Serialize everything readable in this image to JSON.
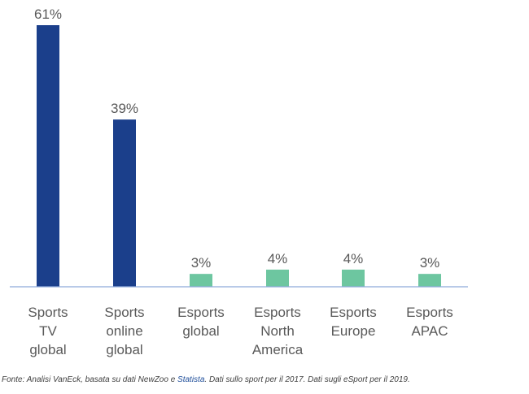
{
  "chart_data": {
    "type": "bar",
    "categories": [
      [
        "Sports",
        "TV",
        "global"
      ],
      [
        "Sports",
        "online",
        "global"
      ],
      [
        "Esports",
        "global"
      ],
      [
        "Esports",
        "North",
        "America"
      ],
      [
        "Esports",
        "Europe"
      ],
      [
        "Esports",
        "APAC"
      ]
    ],
    "values": [
      61,
      39,
      3,
      4,
      4,
      3
    ],
    "value_labels": [
      "61%",
      "39%",
      "3%",
      "4%",
      "4%",
      "3%"
    ],
    "ylim": [
      0,
      65
    ],
    "grid": false,
    "legend": "none",
    "colors": {
      "sports": "#1b3f8b",
      "esports": "#6dc6a0",
      "axis": "#8eaadb"
    },
    "bar_colors": [
      "#1b3f8b",
      "#1b3f8b",
      "#6dc6a0",
      "#6dc6a0",
      "#6dc6a0",
      "#6dc6a0"
    ]
  },
  "source": {
    "prefix": "Fonte: Analisi VanEck, basata su dati NewZoo e ",
    "link": "Statista",
    "suffix": ". Dati sullo sport per il 2017. Dati sugli eSport per il 2019."
  }
}
